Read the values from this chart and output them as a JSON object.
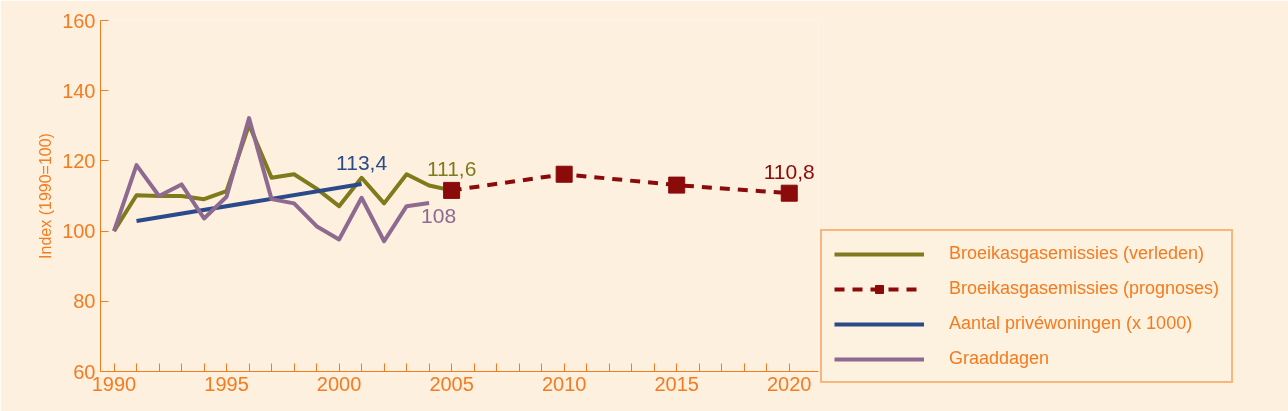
{
  "chart_data": {
    "type": "line",
    "ylabel": "Index (1990=100)",
    "x": [
      1990,
      1991,
      1992,
      1993,
      1994,
      1995,
      1996,
      1997,
      1998,
      1999,
      2000,
      2001,
      2002,
      2003,
      2004,
      2005
    ],
    "xlim": [
      1989.4,
      2021.3
    ],
    "ylim": [
      60,
      160
    ],
    "xticks": [
      1990,
      {
        "value": 1991,
        "label": null
      },
      {
        "value": 1992,
        "label": null
      },
      {
        "value": 1993,
        "label": null
      },
      {
        "value": 1994,
        "label": null
      },
      1995,
      {
        "value": 1996,
        "label": null
      },
      {
        "value": 1997,
        "label": null
      },
      {
        "value": 1998,
        "label": null
      },
      {
        "value": 1999,
        "label": null
      },
      2000,
      {
        "value": 2001,
        "label": null
      },
      {
        "value": 2002,
        "label": null
      },
      {
        "value": 2003,
        "label": null
      },
      {
        "value": 2004,
        "label": null
      },
      2005,
      {
        "value": 2006,
        "label": null
      },
      {
        "value": 2007,
        "label": null
      },
      {
        "value": 2008,
        "label": null
      },
      {
        "value": 2009,
        "label": null
      },
      2010,
      {
        "value": 2011,
        "label": null
      },
      {
        "value": 2012,
        "label": null
      },
      {
        "value": 2013,
        "label": null
      },
      {
        "value": 2014,
        "label": null
      },
      2015,
      {
        "value": 2016,
        "label": null
      },
      {
        "value": 2017,
        "label": null
      },
      {
        "value": 2018,
        "label": null
      },
      {
        "value": 2019,
        "label": null
      },
      2020
    ],
    "yticks": [
      60,
      80,
      100,
      120,
      140,
      160
    ],
    "grid": false,
    "legend": "right",
    "series": [
      {
        "name": "Broeikasgasemissies (verleden)",
        "color": "#7f7a1c",
        "marker": "none",
        "line_style": "solid",
        "values": [
          100,
          110.2,
          110,
          110,
          109.1,
          111.4,
          130.3,
          115.2,
          116.2,
          112.1,
          107.1,
          115.2,
          107.9,
          116.2,
          113,
          111.6
        ],
        "value_labels": [
          null,
          null,
          null,
          null,
          null,
          null,
          null,
          null,
          null,
          null,
          null,
          null,
          null,
          null,
          null,
          "111,6"
        ]
      },
      {
        "name": "Broeikasgasemissies (prognoses)",
        "color": "#8b0a0a",
        "marker": "square",
        "line_style": "dashed",
        "x": [
          2005,
          2010,
          2015,
          2020
        ],
        "values": [
          111.6,
          116.2,
          113.1,
          110.8
        ],
        "value_labels": [
          null,
          null,
          null,
          "110,8"
        ]
      },
      {
        "name": "Aantal privéwoningen (x 1000)",
        "color": "#2a4a8a",
        "marker": "none",
        "line_style": "solid",
        "x": [
          1991,
          2001
        ],
        "values": [
          102.9,
          113.4
        ],
        "value_labels": [
          null,
          "113,4"
        ]
      },
      {
        "name": "Graaddagen",
        "color": "#8e6a90",
        "marker": "none",
        "line_style": "solid",
        "x": [
          1990,
          1991,
          1992,
          1993,
          1994,
          1995,
          1996,
          1997,
          1998,
          1999,
          2000,
          2001,
          2002,
          2003,
          2004
        ],
        "values": [
          100,
          118.8,
          110,
          113.3,
          103.6,
          109.8,
          132.2,
          109.1,
          107.9,
          101.4,
          97.6,
          109.5,
          97.1,
          107.1,
          108
        ],
        "value_labels": [
          null,
          null,
          null,
          null,
          null,
          null,
          null,
          null,
          null,
          null,
          null,
          null,
          null,
          null,
          "108"
        ]
      }
    ]
  }
}
